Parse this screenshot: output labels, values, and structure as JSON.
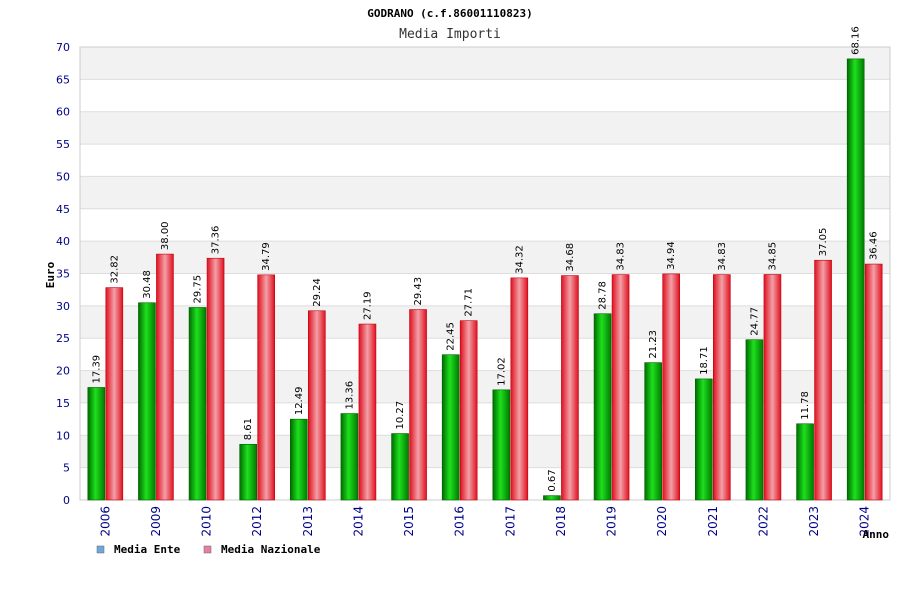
{
  "chart_data": {
    "type": "bar",
    "title": "GODRANO (c.f.86001110823)",
    "subtitle": "Media Importi",
    "ylabel": "Euro",
    "xlabel": "Anno",
    "ylim": [
      0,
      70
    ],
    "yticks": [
      0,
      5,
      10,
      15,
      20,
      25,
      30,
      35,
      40,
      45,
      50,
      55,
      60,
      65,
      70
    ],
    "categories": [
      "2006",
      "2009",
      "2010",
      "2012",
      "2013",
      "2014",
      "2015",
      "2016",
      "2017",
      "2018",
      "2019",
      "2020",
      "2021",
      "2022",
      "2023",
      "2024"
    ],
    "series": [
      {
        "name": "Media Ente",
        "color": "#00b000",
        "legend_color": "#6fa8dc",
        "values": [
          17.39,
          30.48,
          29.75,
          8.61,
          12.49,
          13.36,
          10.27,
          22.45,
          17.02,
          0.67,
          28.78,
          21.23,
          18.71,
          24.77,
          11.78,
          68.16
        ],
        "labels": [
          "17.39",
          "30.48",
          "29.75",
          "8.61",
          "12.49",
          "13.36",
          "10.27",
          "22.45",
          "17.02",
          "0.67",
          "28.78",
          "21.23",
          "18.71",
          "24.77",
          "11.78",
          "68.16"
        ]
      },
      {
        "name": "Media Nazionale",
        "color": "#e8212b",
        "legend_color": "#e67fa7",
        "values": [
          32.82,
          38.0,
          37.36,
          34.79,
          29.24,
          27.19,
          29.43,
          27.71,
          34.32,
          34.68,
          34.83,
          34.94,
          34.83,
          34.85,
          37.05,
          36.46
        ],
        "labels": [
          "32.82",
          "38.00",
          "37.36",
          "34.79",
          "29.24",
          "27.19",
          "29.43",
          "27.71",
          "34.32",
          "34.68",
          "34.83",
          "34.94",
          "34.83",
          "34.85",
          "37.05",
          "36.46"
        ]
      }
    ],
    "grid": true,
    "legend_position": "bottom-left"
  }
}
